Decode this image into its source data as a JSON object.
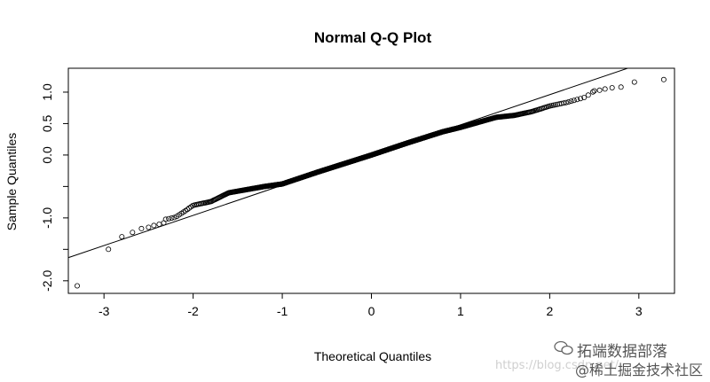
{
  "chart_data": {
    "type": "scatter",
    "title": "Normal Q-Q Plot",
    "xlabel": "Theoretical Quantiles",
    "ylabel": "Sample Quantiles",
    "xlim": [
      -3.4,
      3.4
    ],
    "ylim": [
      -2.2,
      1.38
    ],
    "x_ticks": [
      -3,
      -2,
      -1,
      0,
      1,
      2,
      3
    ],
    "y_ticks": [
      -2.0,
      -1.5,
      -1.0,
      -0.5,
      0.0,
      0.5,
      1.0
    ],
    "y_tick_labels": [
      "-2.0",
      "",
      "-1.0",
      "",
      "0.0",
      "0.5",
      "1.0"
    ],
    "qq_line": {
      "intercept": 0.0,
      "slope": 0.48
    },
    "n_points": 1000,
    "shape_points": [
      [
        -3.3,
        -2.05
      ],
      [
        -2.95,
        -1.5
      ],
      [
        -2.8,
        -1.3
      ],
      [
        -2.68,
        -1.22
      ],
      [
        -2.6,
        -1.15
      ],
      [
        -2.4,
        -1.05
      ],
      [
        -2.2,
        -0.99
      ],
      [
        -2.1,
        -0.9
      ],
      [
        -2.0,
        -0.8
      ],
      [
        -1.8,
        -0.74
      ],
      [
        -1.6,
        -0.6
      ],
      [
        -1.2,
        -0.5
      ],
      [
        -1.0,
        -0.46
      ],
      [
        -0.6,
        -0.27
      ],
      [
        -0.2,
        -0.09
      ],
      [
        0.0,
        0.0
      ],
      [
        0.4,
        0.19
      ],
      [
        0.8,
        0.37
      ],
      [
        1.0,
        0.44
      ],
      [
        1.4,
        0.6
      ],
      [
        1.6,
        0.63
      ],
      [
        1.8,
        0.69
      ],
      [
        2.0,
        0.78
      ],
      [
        2.2,
        0.84
      ],
      [
        2.4,
        0.92
      ],
      [
        2.5,
        1.02
      ],
      [
        2.6,
        1.04
      ],
      [
        2.7,
        1.06
      ],
      [
        2.85,
        1.09
      ],
      [
        3.0,
        1.16
      ],
      [
        3.28,
        1.2
      ]
    ],
    "extreme_points": [
      [
        -3.3,
        -2.08
      ],
      [
        -2.95,
        -1.5
      ],
      [
        -2.8,
        -1.3
      ],
      [
        -2.68,
        -1.23
      ],
      [
        -2.58,
        -1.17
      ],
      [
        -2.5,
        -1.15
      ],
      [
        -2.44,
        -1.12
      ],
      [
        -2.38,
        -1.1
      ],
      [
        -2.33,
        -1.08
      ],
      [
        2.5,
        1.02
      ],
      [
        2.56,
        1.03
      ],
      [
        2.62,
        1.05
      ],
      [
        2.7,
        1.07
      ],
      [
        2.8,
        1.08
      ],
      [
        2.95,
        1.16
      ],
      [
        3.28,
        1.2
      ]
    ]
  },
  "watermark": {
    "url": "https://blog.csdn.net/",
    "brand_line1": "拓端数据部落",
    "brand_line2": "@稀土掘金技术社区"
  }
}
